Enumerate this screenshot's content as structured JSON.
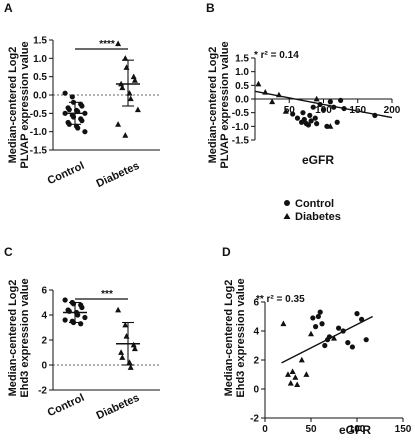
{
  "chart_data": [
    {
      "panel": "A",
      "type": "scatter",
      "ylabel": [
        "Median-centered Log2",
        "PLVAP expression value"
      ],
      "categories": [
        "Control",
        "Diabetes"
      ],
      "ylim": [
        -1.5,
        1.5
      ],
      "yticks": [
        -1.5,
        -1.0,
        -0.5,
        0.0,
        0.5,
        1.0,
        1.5
      ],
      "ytick_labels": [
        "-1.5",
        "-1.0",
        "-0.5",
        "0.0",
        "0.5",
        "1.0",
        "1.5"
      ],
      "reference_line": 0,
      "significance": "****",
      "groups": [
        {
          "name": "Control",
          "marker": "circle",
          "mean": -0.5,
          "sd_low": -0.8,
          "sd_high": -0.2,
          "values": [
            0.05,
            -0.05,
            -0.2,
            -0.25,
            -0.3,
            -0.35,
            -0.4,
            -0.42,
            -0.45,
            -0.5,
            -0.5,
            -0.55,
            -0.6,
            -0.65,
            -0.7,
            -0.75,
            -0.8,
            -0.85,
            -0.9,
            -1.0
          ]
        },
        {
          "name": "Diabetes",
          "marker": "triangle",
          "mean": 0.3,
          "sd_low": -0.3,
          "sd_high": 0.95,
          "values": [
            1.4,
            1.0,
            0.75,
            0.5,
            0.4,
            0.3,
            0.2,
            0.05,
            -0.1,
            -0.4,
            -0.8,
            -1.1
          ]
        }
      ]
    },
    {
      "panel": "B",
      "type": "scatter",
      "ylabel": [
        "Median-centered Log2",
        "PLVAP expression value"
      ],
      "xlabel": "eGFR",
      "xlim": [
        0,
        200
      ],
      "xticks": [
        50,
        100,
        150,
        200
      ],
      "ylim": [
        -1.5,
        1.5
      ],
      "yticks": [
        -1.5,
        -1.0,
        -0.5,
        0.0,
        0.5,
        1.0,
        1.5
      ],
      "ytick_labels": [
        "-1.5",
        "-1.0",
        "-0.5",
        "0.0",
        "0.5",
        "1.0",
        "1.5"
      ],
      "annotation": "* r² = 0.14",
      "regression": {
        "x": [
          0,
          200
        ],
        "y": [
          0.28,
          -0.68
        ]
      },
      "series": [
        {
          "name": "Control",
          "marker": "circle",
          "x": [
            55,
            62,
            68,
            70,
            72,
            75,
            78,
            80,
            82,
            85,
            88,
            90,
            95,
            100,
            105,
            110,
            115,
            120,
            125,
            130,
            175
          ],
          "y": [
            -0.55,
            -0.7,
            -0.85,
            -0.5,
            -0.75,
            -0.9,
            -0.95,
            -0.6,
            -0.8,
            -0.3,
            -0.7,
            -0.9,
            -0.2,
            -0.4,
            -1.0,
            -0.1,
            -0.3,
            -0.85,
            -0.05,
            -0.35,
            -0.6
          ]
        },
        {
          "name": "Diabetes",
          "marker": "triangle",
          "x": [
            5,
            15,
            25,
            35,
            45,
            90,
            110
          ],
          "y": [
            0.55,
            0.25,
            -0.1,
            0.15,
            -0.45,
            0.0,
            -1.0
          ]
        }
      ]
    },
    {
      "panel": "C",
      "type": "scatter",
      "ylabel": [
        "Median-centered Log2",
        "Ehd3 expression value"
      ],
      "categories": [
        "Control",
        "Diabetes"
      ],
      "ylim": [
        -2,
        6
      ],
      "yticks": [
        -2,
        0,
        2,
        4,
        6
      ],
      "ytick_labels": [
        "-2",
        "0",
        "2",
        "4",
        "6"
      ],
      "reference_line": 0,
      "significance": "***",
      "groups": [
        {
          "name": "Control",
          "marker": "circle",
          "mean": 4.2,
          "sd_low": 3.4,
          "sd_high": 5.0,
          "values": [
            5.2,
            5.0,
            4.9,
            4.8,
            4.6,
            4.4,
            4.3,
            4.2,
            4.0,
            3.8,
            3.6,
            3.5,
            3.4,
            3.3
          ]
        },
        {
          "name": "Diabetes",
          "marker": "triangle",
          "mean": 1.7,
          "sd_low": 0.0,
          "sd_high": 3.4,
          "values": [
            4.4,
            3.2,
            2.3,
            1.6,
            1.3,
            1.0,
            0.6,
            0.2,
            -0.2
          ]
        }
      ]
    },
    {
      "panel": "D",
      "type": "scatter",
      "ylabel": [
        "Median-centered Log2",
        "Ehd3 expression value"
      ],
      "xlabel": "eGFR",
      "xlim": [
        0,
        150
      ],
      "xticks": [
        0,
        50,
        100,
        150
      ],
      "ylim": [
        -2,
        6
      ],
      "yticks": [
        -2,
        0,
        2,
        4,
        6
      ],
      "ytick_labels": [
        "-2",
        "0",
        "2",
        "4",
        "6"
      ],
      "annotation": "** r² = 0.35",
      "regression": {
        "x": [
          18,
          117
        ],
        "y": [
          1.8,
          5.0
        ]
      },
      "series": [
        {
          "name": "Control",
          "marker": "circle",
          "x": [
            52,
            55,
            58,
            60,
            62,
            65,
            68,
            70,
            80,
            85,
            90,
            95,
            100,
            105,
            110
          ],
          "y": [
            4.9,
            4.3,
            5.0,
            5.3,
            4.5,
            3.0,
            3.4,
            3.6,
            4.2,
            4.0,
            3.2,
            2.9,
            5.2,
            4.8,
            3.4
          ]
        },
        {
          "name": "Diabetes",
          "marker": "triangle",
          "x": [
            20,
            25,
            28,
            30,
            33,
            35,
            40,
            45,
            50,
            75
          ],
          "y": [
            4.5,
            1.0,
            0.4,
            1.2,
            0.8,
            0.3,
            2.0,
            1.0,
            3.8,
            3.5
          ]
        }
      ]
    }
  ],
  "legend": [
    {
      "name": "Control",
      "marker": "circle"
    },
    {
      "name": "Diabetes",
      "marker": "triangle"
    }
  ]
}
